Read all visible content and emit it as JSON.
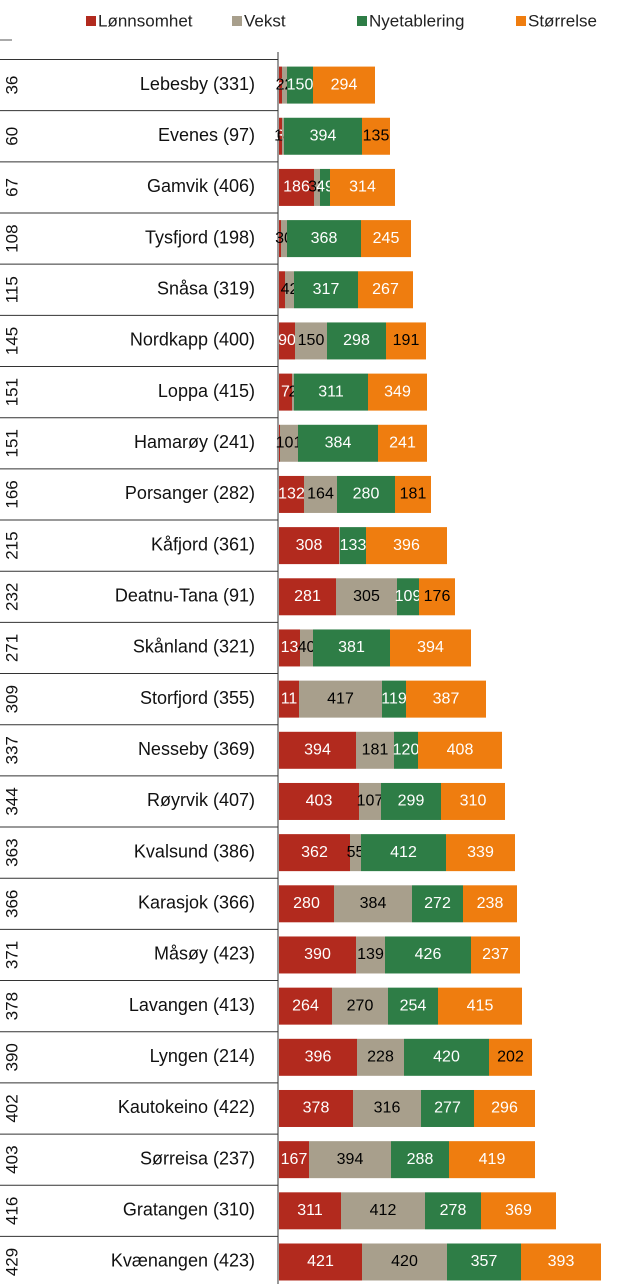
{
  "chart_data": {
    "type": "stacked_barh",
    "categories": [
      "Lebesby (331)",
      "Evenes (97)",
      "Gamvik (406)",
      "Tysfjord (198)",
      "Snåsa (319)",
      "Nordkapp (400)",
      "Loppa (415)",
      "Hamarøy (241)",
      "Porsanger (282)",
      "Kåfjord (361)",
      "Deatnu-Tana (91)",
      "Skånland (321)",
      "Storfjord (355)",
      "Nesseby (369)",
      "Røyrvik (407)",
      "Kvalsund (386)",
      "Karasjok (366)",
      "Måsøy (423)",
      "Lavangen (413)",
      "Lyngen (214)",
      "Kautokeino (422)",
      "Sørreisa (237)",
      "Gratangen (310)",
      "Kvænangen (423)"
    ],
    "row_ranks": [
      36,
      60,
      67,
      108,
      115,
      145,
      151,
      151,
      166,
      215,
      232,
      271,
      309,
      337,
      344,
      363,
      366,
      371,
      378,
      390,
      402,
      403,
      416,
      429
    ],
    "series": [
      {
        "name": "Lønnsomhet",
        "color": "#b22a1e",
        "text_color": "#ffffff",
        "values": [
          3,
          3,
          35,
          2,
          6,
          16,
          13,
          1,
          25,
          60,
          57,
          21,
          20,
          77,
          80,
          71,
          55,
          77,
          53,
          78,
          74,
          30,
          62,
          83
        ],
        "rank_labels": [
          6,
          3,
          186,
          null,
          null,
          90,
          7,
          null,
          132,
          308,
          281,
          13,
          11,
          394,
          403,
          362,
          280,
          390,
          264,
          396,
          378,
          167,
          311,
          421
        ]
      },
      {
        "name": "Vekst",
        "color": "#a89f8c",
        "text_color": "#000000",
        "values": [
          5,
          2,
          6,
          6,
          9,
          32,
          2,
          18,
          33,
          1,
          61,
          13,
          83,
          38,
          22,
          11,
          78,
          29,
          56,
          47,
          68,
          82,
          84,
          85
        ],
        "rank_labels": [
          22,
          18,
          32,
          30,
          42,
          150,
          2,
          101,
          164,
          null,
          305,
          40,
          417,
          181,
          107,
          55,
          384,
          139,
          270,
          228,
          316,
          394,
          412,
          420
        ]
      },
      {
        "name": "Nyetablering",
        "color": "#2e7d46",
        "text_color": "#ffffff",
        "values": [
          26,
          78,
          10,
          74,
          64,
          59,
          74,
          80,
          58,
          26,
          22,
          77,
          24,
          24,
          60,
          85,
          51,
          86,
          50,
          85,
          53,
          58,
          56,
          74
        ],
        "rank_labels": [
          150,
          394,
          49,
          368,
          317,
          298,
          311,
          384,
          280,
          133,
          109,
          381,
          119,
          120,
          299,
          412,
          272,
          426,
          254,
          420,
          277,
          288,
          278,
          357
        ]
      },
      {
        "name": "Størrelse",
        "color": "#ef7d0f",
        "text_color": "#000000",
        "values": [
          62,
          28,
          65,
          50,
          55,
          40,
          59,
          49,
          36,
          81,
          36,
          81,
          80,
          84,
          64,
          69,
          54,
          49,
          84,
          43,
          61,
          86,
          75,
          80
        ],
        "rank_labels": [
          294,
          135,
          314,
          245,
          267,
          191,
          349,
          241,
          181,
          396,
          176,
          394,
          387,
          408,
          310,
          339,
          238,
          237,
          415,
          202,
          296,
          419,
          369,
          393
        ]
      }
    ]
  }
}
